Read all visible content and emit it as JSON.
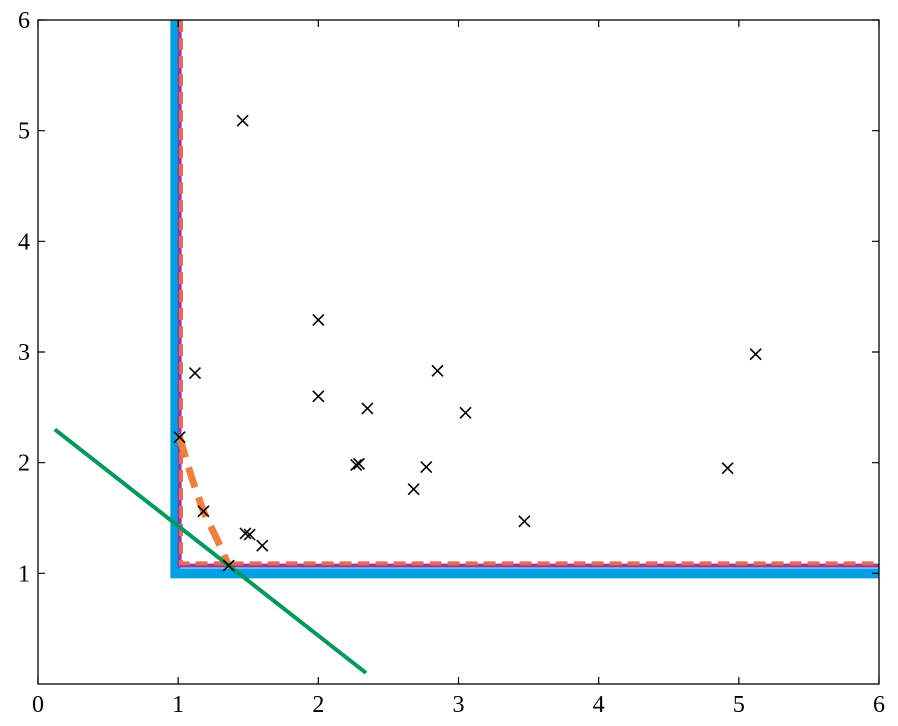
{
  "chart_data": {
    "type": "line",
    "xlim": [
      0,
      6
    ],
    "ylim": [
      0,
      6
    ],
    "xticks": [
      0,
      1,
      2,
      3,
      4,
      5,
      6
    ],
    "yticks": [
      1,
      2,
      3,
      4,
      5,
      6
    ],
    "series": [
      {
        "type": "line",
        "color": "#00a0e3",
        "line_width": 10,
        "dashed": false,
        "x": [
          0.98,
          0.98,
          6
        ],
        "values": [
          6,
          1.0,
          1.0
        ]
      },
      {
        "type": "line",
        "color": "#8e3a9e",
        "line_width": 4,
        "dashed": false,
        "x": [
          1.01,
          1.01,
          6
        ],
        "values": [
          6,
          1.07,
          1.07
        ]
      },
      {
        "type": "line",
        "color": "#e8675a",
        "line_width": 4,
        "dashed": true,
        "x": [
          1.02,
          1.02,
          6
        ],
        "values": [
          6,
          1.09,
          1.09
        ]
      },
      {
        "type": "line",
        "color": "#f07f3c",
        "line_width": 7,
        "dashed": true,
        "x": [
          1.01,
          1.1,
          1.18,
          1.28,
          1.36
        ],
        "values": [
          2.23,
          1.85,
          1.56,
          1.3,
          1.07
        ]
      },
      {
        "type": "line",
        "color": "#009a5a",
        "line_width": 4,
        "dashed": false,
        "x": [
          0.12,
          2.34
        ],
        "values": [
          2.3,
          0.1
        ]
      },
      {
        "type": "scatter",
        "color": "#000000",
        "x": [
          1.46,
          1.12,
          1.01,
          2.0,
          2.0,
          2.35,
          2.85,
          3.05,
          2.27,
          2.29,
          2.77,
          2.68,
          3.47,
          4.92,
          5.12,
          1.18,
          1.48,
          1.51,
          1.6,
          1.36
        ],
        "values": [
          5.09,
          2.81,
          2.23,
          3.29,
          2.6,
          2.49,
          2.83,
          2.45,
          1.98,
          1.99,
          1.96,
          1.76,
          1.47,
          1.95,
          2.98,
          1.56,
          1.36,
          1.35,
          1.25,
          1.07
        ]
      }
    ]
  }
}
